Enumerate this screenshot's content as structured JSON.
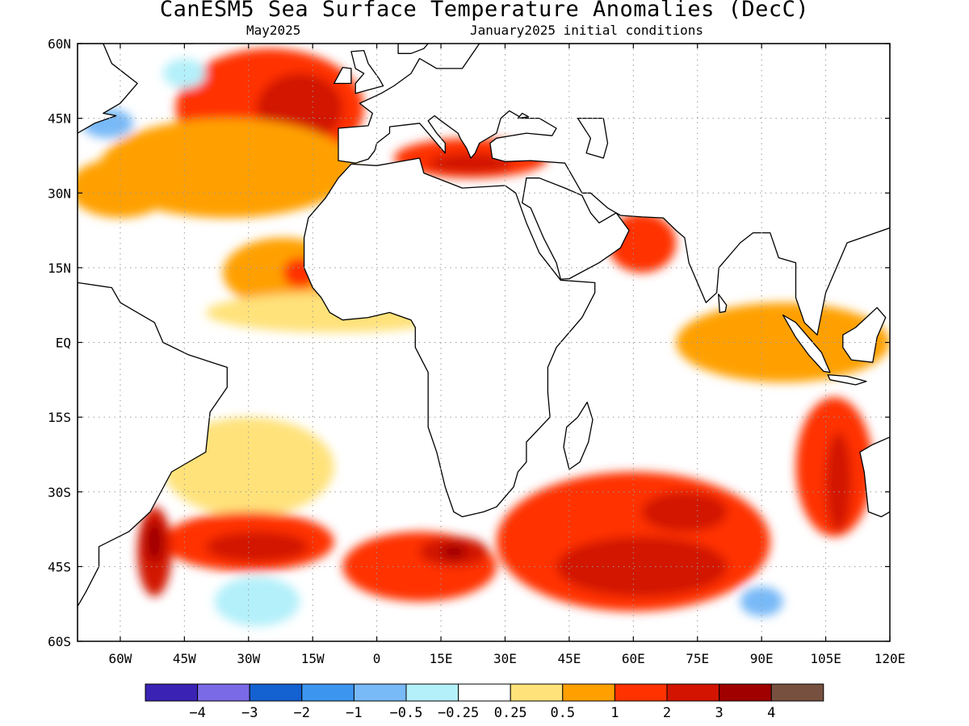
{
  "title": "CanESM5 Sea Surface Temperature Anomalies (DecC)",
  "subtitle_left": "May2025",
  "subtitle_right": "January2025 initial conditions",
  "lat_ticks": [
    {
      "value": 60,
      "label": "60N"
    },
    {
      "value": 45,
      "label": "45N"
    },
    {
      "value": 30,
      "label": "30N"
    },
    {
      "value": 15,
      "label": "15N"
    },
    {
      "value": 0,
      "label": "EQ"
    },
    {
      "value": -15,
      "label": "15S"
    },
    {
      "value": -30,
      "label": "30S"
    },
    {
      "value": -45,
      "label": "45S"
    },
    {
      "value": -60,
      "label": "60S"
    }
  ],
  "lon_ticks": [
    {
      "value": -60,
      "label": "60W"
    },
    {
      "value": -45,
      "label": "45W"
    },
    {
      "value": -30,
      "label": "30W"
    },
    {
      "value": -15,
      "label": "15W"
    },
    {
      "value": 0,
      "label": "0"
    },
    {
      "value": 15,
      "label": "15E"
    },
    {
      "value": 30,
      "label": "30E"
    },
    {
      "value": 45,
      "label": "45E"
    },
    {
      "value": 60,
      "label": "60E"
    },
    {
      "value": 75,
      "label": "75E"
    },
    {
      "value": 90,
      "label": "90E"
    },
    {
      "value": 105,
      "label": "105E"
    },
    {
      "value": 120,
      "label": "120E"
    }
  ],
  "map_extent": {
    "lon": [
      -70,
      120
    ],
    "lat": [
      -60,
      60
    ]
  },
  "colorbar": {
    "colors": [
      "#3a22b4",
      "#7b6ae6",
      "#1461d2",
      "#3c96f0",
      "#78b9f7",
      "#b4f0fa",
      "#ffffff",
      "#ffe27a",
      "#ffa000",
      "#ff3200",
      "#d21400",
      "#a00000",
      "#785040"
    ],
    "labels": [
      "−4",
      "−3",
      "−2",
      "−1",
      "−0.5",
      "−0.25",
      "0.25",
      "0.5",
      "1",
      "2",
      "3",
      "4"
    ]
  },
  "anomaly_regions": [
    {
      "lon": -25,
      "lat": 47,
      "rx": 22,
      "ry": 12,
      "value": 1
    },
    {
      "lon": -18,
      "lat": 47,
      "rx": 10,
      "ry": 7,
      "value": 2
    },
    {
      "lon": -35,
      "lat": 35,
      "rx": 30,
      "ry": 10,
      "value": 0.5
    },
    {
      "lon": -60,
      "lat": 31,
      "rx": 12,
      "ry": 6,
      "value": 0.5
    },
    {
      "lon": -22,
      "lat": 14,
      "rx": 14,
      "ry": 7,
      "value": 0.5
    },
    {
      "lon": -18,
      "lat": 14,
      "rx": 4,
      "ry": 3,
      "value": 1
    },
    {
      "lon": -63,
      "lat": 44,
      "rx": 6,
      "ry": 3,
      "value": -1
    },
    {
      "lon": -45,
      "lat": 54,
      "rx": 5,
      "ry": 3,
      "value": -0.5
    },
    {
      "lon": -10,
      "lat": 6,
      "rx": 30,
      "ry": 4,
      "value": 0.25
    },
    {
      "lon": -30,
      "lat": -25,
      "rx": 20,
      "ry": 10,
      "value": 0.25
    },
    {
      "lon": -30,
      "lat": -40,
      "rx": 20,
      "ry": 6,
      "value": 1
    },
    {
      "lon": -28,
      "lat": -41,
      "rx": 12,
      "ry": 3,
      "value": 2
    },
    {
      "lon": -52,
      "lat": -42,
      "rx": 4,
      "ry": 9,
      "value": 2
    },
    {
      "lon": -52,
      "lat": -40,
      "rx": 2,
      "ry": 4,
      "value": 3
    },
    {
      "lon": -28,
      "lat": -52,
      "rx": 10,
      "ry": 5,
      "value": -0.5
    },
    {
      "lon": 5,
      "lat": -27,
      "rx": 6,
      "ry": 8,
      "value": -0.25
    },
    {
      "lon": 10,
      "lat": -45,
      "rx": 18,
      "ry": 7,
      "value": 1
    },
    {
      "lon": 18,
      "lat": -42,
      "rx": 8,
      "ry": 3,
      "value": 2
    },
    {
      "lon": 18,
      "lat": -42,
      "rx": 3,
      "ry": 1.5,
      "value": 3
    },
    {
      "lon": 60,
      "lat": -40,
      "rx": 32,
      "ry": 14,
      "value": 1
    },
    {
      "lon": 62,
      "lat": -45,
      "rx": 20,
      "ry": 6,
      "value": 2
    },
    {
      "lon": 72,
      "lat": -34,
      "rx": 10,
      "ry": 4,
      "value": 2
    },
    {
      "lon": 107,
      "lat": -25,
      "rx": 9,
      "ry": 14,
      "value": 1
    },
    {
      "lon": 108,
      "lat": -28,
      "rx": 3,
      "ry": 10,
      "value": 2
    },
    {
      "lon": 90,
      "lat": -52,
      "rx": 5,
      "ry": 3,
      "value": -1
    },
    {
      "lon": 95,
      "lat": 0,
      "rx": 25,
      "ry": 8,
      "value": 0.5
    },
    {
      "lon": 62,
      "lat": 20,
      "rx": 8,
      "ry": 6,
      "value": 1
    },
    {
      "lon": 22,
      "lat": 37,
      "rx": 18,
      "ry": 4,
      "value": 1
    },
    {
      "lon": 22,
      "lat": 36,
      "rx": 10,
      "ry": 2,
      "value": 2
    }
  ]
}
